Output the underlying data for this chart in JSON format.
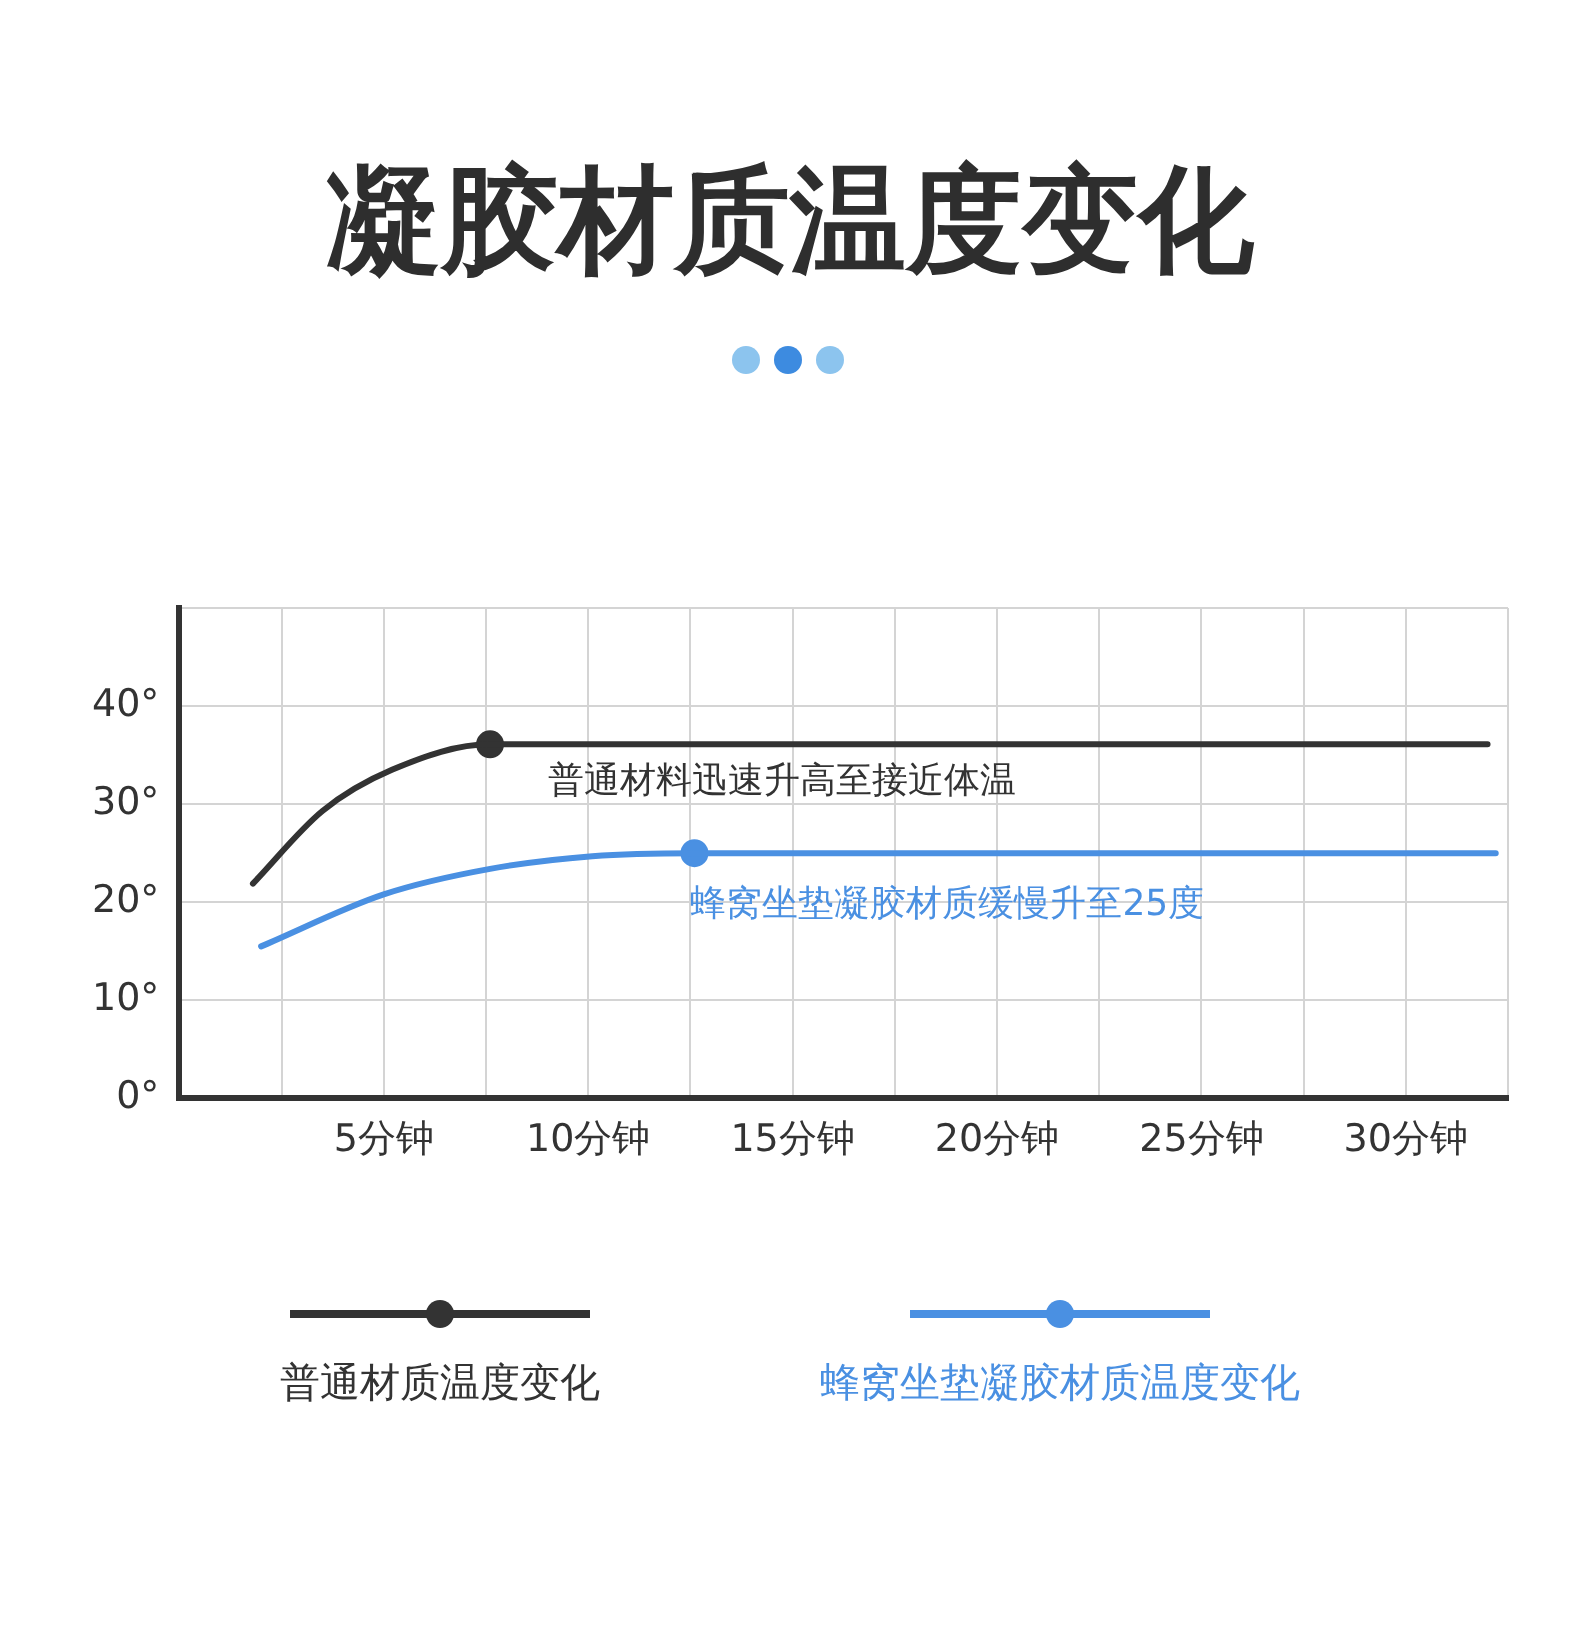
{
  "chart_data": {
    "type": "line",
    "title": "凝胶材质温度变化",
    "xlim": [
      0,
      32.5
    ],
    "xticks": [
      {
        "value": 2.5,
        "label": null
      },
      {
        "value": 5,
        "label": "5分钟"
      },
      {
        "value": 7.5,
        "label": null
      },
      {
        "value": 10,
        "label": "10分钟"
      },
      {
        "value": 12.5,
        "label": null
      },
      {
        "value": 15,
        "label": "15分钟"
      },
      {
        "value": 17.5,
        "label": null
      },
      {
        "value": 20,
        "label": "20分钟"
      },
      {
        "value": 22.5,
        "label": null
      },
      {
        "value": 25,
        "label": "25分钟"
      },
      {
        "value": 27.5,
        "label": null
      },
      {
        "value": 30,
        "label": "30分钟"
      },
      {
        "value": 32.5,
        "label": null
      }
    ],
    "ylim": [
      0,
      50
    ],
    "yticks": [
      {
        "value": 0,
        "label": "0°"
      },
      {
        "value": 10,
        "label": "10°"
      },
      {
        "value": 20,
        "label": "20°"
      },
      {
        "value": 30,
        "label": "30°"
      },
      {
        "value": 40,
        "label": "40°"
      },
      {
        "value": 50,
        "label": null
      }
    ],
    "grid": true,
    "legend": "bottom",
    "marker": "none",
    "line_style": "solid",
    "series": [
      {
        "name": "普通材质温度变化",
        "color": "#333333",
        "x": [
          1.8,
          3.5,
          5.2,
          7.6,
          32.0
        ],
        "values": [
          21.9,
          29.3,
          33.5,
          36.1,
          36.1
        ]
      },
      {
        "name": "蜂窝坐垫凝胶材质温度变化",
        "color": "#4a90e2",
        "x": [
          2.0,
          5.0,
          7.6,
          10.1,
          12.6,
          32.2
        ],
        "values": [
          15.5,
          20.8,
          23.4,
          24.7,
          25,
          25
        ]
      },
      {
        "type": "scatter",
        "marker": "circle",
        "color": "#333333",
        "x": [
          7.6
        ],
        "values": [
          36.1
        ]
      },
      {
        "type": "scatter",
        "marker": "circle",
        "color": "#4a90e2",
        "x": [
          12.6
        ],
        "values": [
          25
        ]
      }
    ],
    "annotations": [
      "普通材料迅速升高至接近体温",
      "蜂窝坐垫凝胶材质缓慢升至25度"
    ]
  }
}
